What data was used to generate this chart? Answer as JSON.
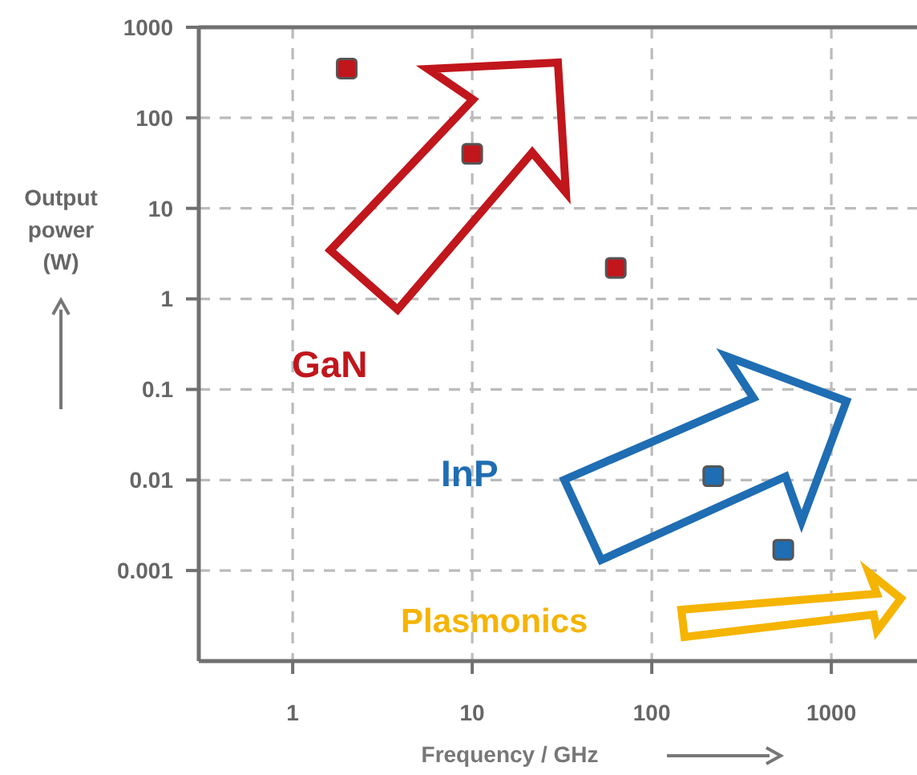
{
  "chart_data": {
    "type": "scatter",
    "xlabel": "Frequency / GHz",
    "ylabel": "Output power (W)",
    "log": "xy",
    "xlim": [
      0.3,
      3000
    ],
    "ylim": [
      0.0001,
      1000
    ],
    "xticks": [
      1,
      10,
      100,
      1000
    ],
    "yticks": [
      0.001,
      0.01,
      0.1,
      1,
      10,
      100,
      1000
    ],
    "grid": true,
    "marker": "square",
    "series": [
      {
        "name": "GaN",
        "color": "#c0161c",
        "x": [
          2,
          10,
          63
        ],
        "values": [
          350,
          40,
          2.2
        ]
      },
      {
        "name": "InP",
        "color": "#1f6db3",
        "x": [
          220,
          540
        ],
        "values": [
          0.011,
          0.0017
        ]
      }
    ],
    "annotations": [
      "Plasmonics"
    ]
  }
}
